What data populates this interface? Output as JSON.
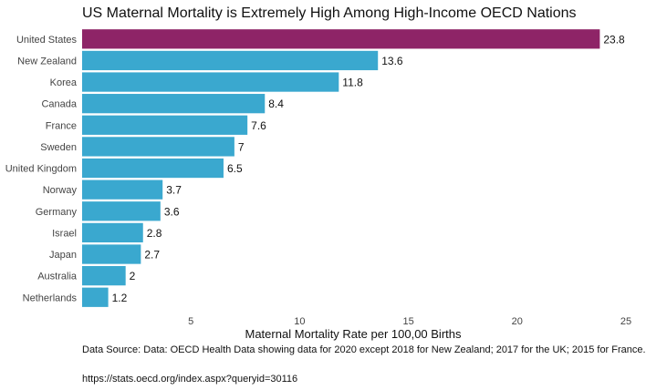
{
  "chart_data": {
    "type": "bar",
    "orientation": "horizontal",
    "title": "US Maternal Mortality is Extremely High Among High-Income OECD Nations",
    "xlabel": "Maternal Mortality Rate per 100,00 Births",
    "ylabel": "",
    "xlim": [
      0,
      25
    ],
    "xticks": [
      5,
      10,
      15,
      20,
      25
    ],
    "grid": false,
    "categories": [
      "United States",
      "New Zealand",
      "Korea",
      "Canada",
      "France",
      "Sweden",
      "United Kingdom",
      "Norway",
      "Germany",
      "Israel",
      "Japan",
      "Australia",
      "Netherlands"
    ],
    "values": [
      23.8,
      13.6,
      11.8,
      8.4,
      7.6,
      7,
      6.5,
      3.7,
      3.6,
      2.8,
      2.7,
      2,
      1.2
    ],
    "value_labels": [
      "23.8",
      "13.6",
      "11.8",
      "8.4",
      "7.6",
      "7",
      "6.5",
      "3.7",
      "3.6",
      "2.8",
      "2.7",
      "2",
      "1.2"
    ],
    "highlight_category": "United States",
    "colors": {
      "highlight": "#8e2467",
      "default": "#3aa8cf"
    }
  },
  "caption": "Data Source: Data: OECD Health Data showing data for 2020 except 2018 for New Zealand; 2017 for the UK; 2015 for France.",
  "source_url": "https://stats.oecd.org/index.aspx?queryid=30116"
}
